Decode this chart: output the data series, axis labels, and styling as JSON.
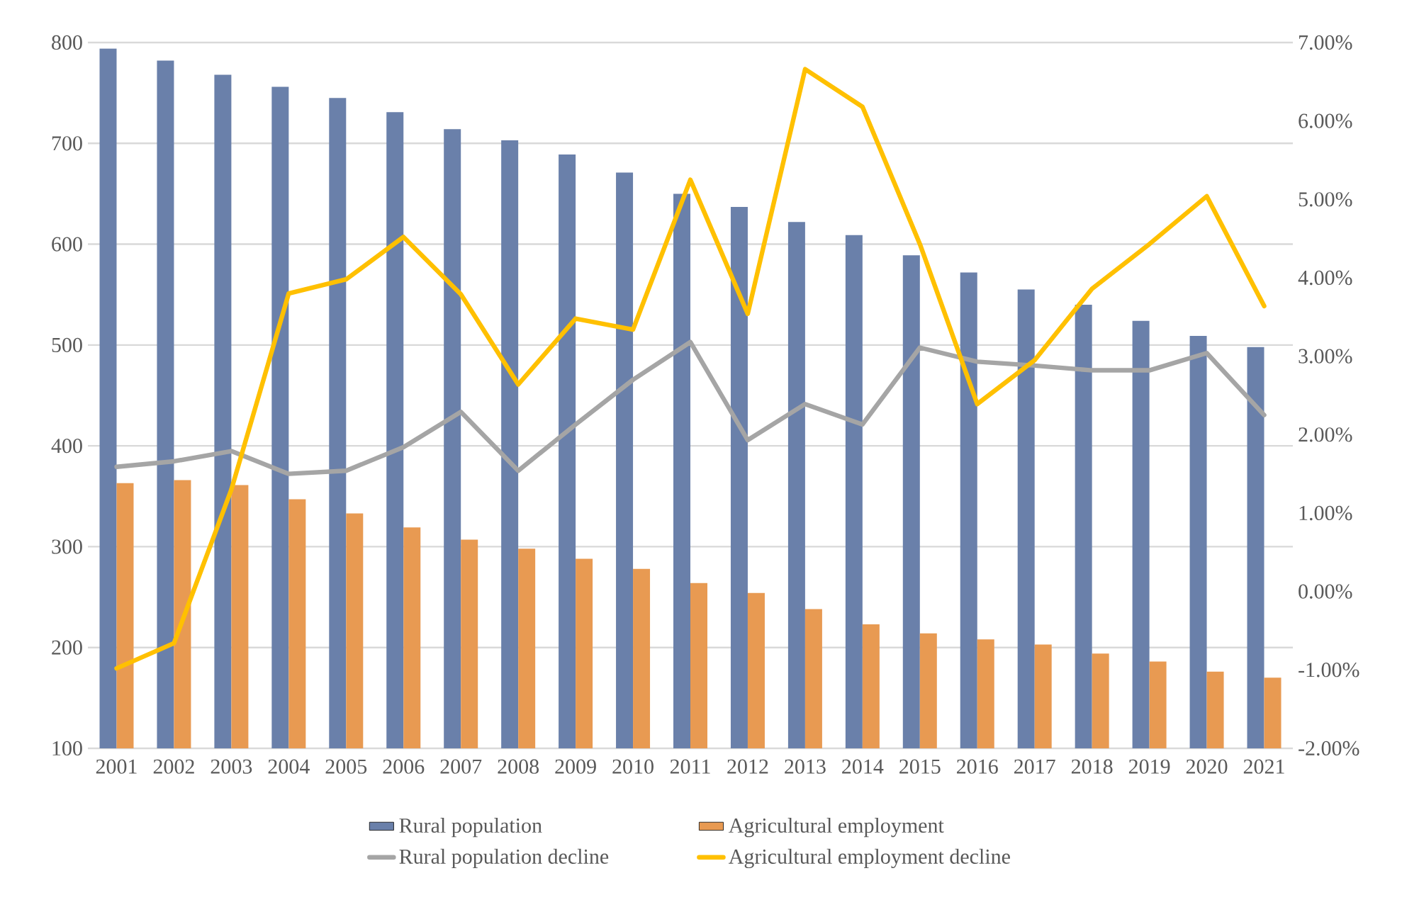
{
  "chart_data": {
    "type": "bar",
    "categories": [
      "2001",
      "2002",
      "2003",
      "2004",
      "2005",
      "2006",
      "2007",
      "2008",
      "2009",
      "2010",
      "2011",
      "2012",
      "2013",
      "2014",
      "2015",
      "2016",
      "2017",
      "2018",
      "2019",
      "2020",
      "2021"
    ],
    "series": [
      {
        "name": "Rural population",
        "color": "#6a80aa",
        "values": [
          794,
          782,
          768,
          756,
          745,
          731,
          714,
          703,
          689,
          671,
          650,
          637,
          622,
          609,
          589,
          572,
          555,
          540,
          524,
          509,
          498
        ]
      },
      {
        "name": "Agricultural employment",
        "color": "#e89a52",
        "values": [
          363,
          366,
          361,
          347,
          333,
          319,
          307,
          298,
          288,
          278,
          264,
          254,
          238,
          223,
          214,
          208,
          203,
          194,
          186,
          176,
          170
        ]
      },
      {
        "name": "Rural population decline",
        "type": "line",
        "axis": "y2",
        "color": "#a5a5a5",
        "values": [
          1.59,
          1.66,
          1.79,
          1.5,
          1.54,
          1.84,
          2.29,
          1.54,
          2.13,
          2.7,
          3.18,
          1.93,
          2.39,
          2.13,
          3.11,
          2.93,
          2.88,
          2.82,
          2.82,
          3.04,
          2.25
        ]
      },
      {
        "name": "Agricultural employment decline",
        "type": "line",
        "axis": "y2",
        "color": "#ffc000",
        "values": [
          -0.98,
          -0.66,
          1.3,
          3.8,
          3.98,
          4.52,
          3.79,
          2.64,
          3.48,
          3.34,
          5.25,
          3.54,
          6.66,
          6.18,
          4.43,
          2.39,
          2.95,
          3.86,
          4.43,
          5.04,
          3.64
        ]
      }
    ],
    "ylim": [
      100,
      800
    ],
    "yticks": [
      100,
      200,
      300,
      400,
      500,
      600,
      700,
      800
    ],
    "y2lim": [
      -2,
      7
    ],
    "y2ticks": [
      {
        "value": -2,
        "label": "-2.00%"
      },
      {
        "value": -1,
        "label": "-1.00%"
      },
      {
        "value": 0,
        "label": "0.00%"
      },
      {
        "value": 1,
        "label": "1.00%"
      },
      {
        "value": 2,
        "label": "2.00%"
      },
      {
        "value": 3,
        "label": "3.00%"
      },
      {
        "value": 4,
        "label": "4.00%"
      },
      {
        "value": 5,
        "label": "5.00%"
      },
      {
        "value": 6,
        "label": "6.00%"
      },
      {
        "value": 7,
        "label": "7.00%"
      }
    ],
    "grid": "y",
    "legend": "bottom"
  }
}
